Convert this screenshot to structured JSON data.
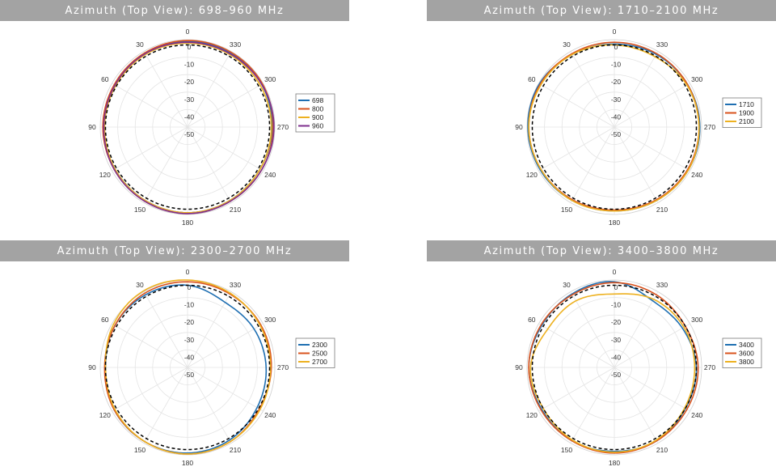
{
  "colors": {
    "banner": "#a3a3a3",
    "reference": "#000000"
  },
  "chart_data": [
    {
      "type": "polar-line",
      "title": "Azimuth (Top View): 698–960 MHz",
      "angle_labels": [
        "0",
        "330",
        "300",
        "270",
        "240",
        "210",
        "180",
        "150",
        "120",
        "90",
        "60",
        "30"
      ],
      "radial_labels": [
        "0",
        "-10",
        "-20",
        "-30",
        "-40",
        "-50"
      ],
      "rlim": [
        -50,
        0
      ],
      "grid": true,
      "legend_position": "right",
      "angle_direction": "counter-clockwise shown left to right: 30 at upper-left, 330 at upper-right",
      "reference": {
        "style": "dashed",
        "color": "#000000",
        "value": -3
      },
      "series": [
        {
          "name": "698",
          "color": "#1f6fb2",
          "angles": [
            0,
            30,
            60,
            90,
            120,
            150,
            180,
            210,
            240,
            270,
            300,
            330
          ],
          "values": [
            -1.0,
            -1.5,
            -2.0,
            -2.0,
            -2.0,
            -1.5,
            -1.0,
            -1.5,
            -2.0,
            -1.5,
            -1.0,
            -1.0
          ]
        },
        {
          "name": "800",
          "color": "#d9531e",
          "angles": [
            0,
            30,
            60,
            90,
            120,
            150,
            180,
            210,
            240,
            270,
            300,
            330
          ],
          "values": [
            -0.5,
            -1.0,
            -1.5,
            -1.5,
            -1.5,
            -1.0,
            -0.5,
            -1.0,
            -1.0,
            -1.0,
            -0.5,
            -0.5
          ]
        },
        {
          "name": "900",
          "color": "#edb120",
          "angles": [
            0,
            30,
            60,
            90,
            120,
            150,
            180,
            210,
            240,
            270,
            300,
            330
          ],
          "values": [
            -2.0,
            -2.0,
            -2.5,
            -2.5,
            -2.0,
            -1.5,
            -1.0,
            -1.5,
            -2.0,
            -2.0,
            -2.0,
            -2.0
          ]
        },
        {
          "name": "960",
          "color": "#7e2f8e",
          "angles": [
            0,
            30,
            60,
            90,
            120,
            150,
            180,
            210,
            240,
            270,
            300,
            330
          ],
          "values": [
            -1.5,
            -1.5,
            -2.0,
            -2.0,
            -1.5,
            -1.0,
            -0.5,
            -1.0,
            -1.0,
            -0.5,
            -1.0,
            -1.5
          ]
        }
      ]
    },
    {
      "type": "polar-line",
      "title": "Azimuth (Top View): 1710–2100 MHz",
      "angle_labels": [
        "0",
        "330",
        "300",
        "270",
        "240",
        "210",
        "180",
        "150",
        "120",
        "90",
        "60",
        "30"
      ],
      "radial_labels": [
        "0",
        "-10",
        "-20",
        "-30",
        "-40",
        "-50"
      ],
      "rlim": [
        -50,
        0
      ],
      "grid": true,
      "legend_position": "right",
      "reference": {
        "style": "dashed",
        "color": "#000000",
        "value": -3
      },
      "series": [
        {
          "name": "1710",
          "color": "#1f6fb2",
          "angles": [
            0,
            30,
            60,
            90,
            120,
            150,
            180,
            210,
            240,
            270,
            300,
            330
          ],
          "values": [
            -2.5,
            -2.0,
            -0.5,
            -0.5,
            -1.0,
            -1.5,
            -2.0,
            -1.5,
            -1.0,
            -1.0,
            -1.5,
            -2.0
          ]
        },
        {
          "name": "1900",
          "color": "#d9531e",
          "angles": [
            0,
            30,
            60,
            90,
            120,
            150,
            180,
            210,
            240,
            270,
            300,
            330
          ],
          "values": [
            -1.5,
            -1.5,
            -1.0,
            -1.0,
            -1.5,
            -2.0,
            -2.5,
            -2.0,
            -1.5,
            -1.5,
            -1.5,
            -1.5
          ]
        },
        {
          "name": "2100",
          "color": "#edb120",
          "angles": [
            0,
            30,
            60,
            90,
            120,
            150,
            180,
            210,
            240,
            270,
            300,
            330
          ],
          "values": [
            -3.0,
            -2.0,
            -1.5,
            -1.0,
            -1.5,
            -1.5,
            -2.0,
            -1.5,
            -1.0,
            -1.5,
            -2.0,
            -3.5
          ]
        }
      ]
    },
    {
      "type": "polar-line",
      "title": "Azimuth (Top View): 2300–2700 MHz",
      "angle_labels": [
        "0",
        "330",
        "300",
        "270",
        "240",
        "210",
        "180",
        "150",
        "120",
        "90",
        "60",
        "30"
      ],
      "radial_labels": [
        "0",
        "-10",
        "-20",
        "-30",
        "-40",
        "-50"
      ],
      "rlim": [
        -50,
        0
      ],
      "grid": true,
      "legend_position": "right",
      "reference": {
        "style": "dashed",
        "color": "#000000",
        "value": -3
      },
      "series": [
        {
          "name": "2300",
          "color": "#1f6fb2",
          "angles": [
            0,
            30,
            60,
            90,
            120,
            150,
            180,
            210,
            240,
            270,
            300,
            330
          ],
          "values": [
            -3.0,
            -2.0,
            -2.0,
            -3.0,
            -1.5,
            -1.0,
            -1.0,
            -2.0,
            -4.0,
            -5.0,
            -6.0,
            -7.0
          ]
        },
        {
          "name": "2500",
          "color": "#d9531e",
          "angles": [
            0,
            30,
            60,
            90,
            120,
            150,
            180,
            210,
            240,
            270,
            300,
            330
          ],
          "values": [
            -1.0,
            -1.0,
            -2.0,
            -2.5,
            -1.5,
            -1.0,
            -0.5,
            -1.0,
            -2.5,
            -2.0,
            -1.5,
            -1.5
          ]
        },
        {
          "name": "2700",
          "color": "#edb120",
          "angles": [
            0,
            30,
            60,
            90,
            120,
            150,
            180,
            210,
            240,
            270,
            300,
            330
          ],
          "values": [
            0,
            0.5,
            -1.0,
            -3.0,
            -2.0,
            -1.0,
            -0.5,
            -1.0,
            -2.0,
            -2.5,
            -2.0,
            -1.0
          ]
        }
      ]
    },
    {
      "type": "polar-line",
      "title": "Azimuth (Top View): 3400–3800 MHz",
      "angle_labels": [
        "0",
        "330",
        "300",
        "270",
        "240",
        "210",
        "180",
        "150",
        "120",
        "90",
        "60",
        "30"
      ],
      "radial_labels": [
        "0",
        "-10",
        "-20",
        "-30",
        "-40",
        "-50"
      ],
      "rlim": [
        -50,
        0
      ],
      "grid": true,
      "legend_position": "right",
      "reference": {
        "style": "dashed",
        "color": "#000000",
        "value": -3
      },
      "series": [
        {
          "name": "3400",
          "color": "#1f6fb2",
          "angles": [
            0,
            30,
            60,
            90,
            120,
            150,
            180,
            210,
            240,
            270,
            300,
            330
          ],
          "values": [
            -1.0,
            -1.5,
            -2.0,
            -1.0,
            -2.0,
            -1.5,
            -2.0,
            -1.5,
            -3.0,
            -3.0,
            -5.0,
            -6.0
          ]
        },
        {
          "name": "3600",
          "color": "#d9531e",
          "angles": [
            0,
            30,
            60,
            90,
            120,
            150,
            180,
            210,
            240,
            270,
            300,
            330
          ],
          "values": [
            -1.5,
            -2.0,
            -1.5,
            -1.0,
            -1.5,
            -1.5,
            -1.0,
            -1.5,
            -2.0,
            -2.0,
            -3.0,
            -2.0
          ]
        },
        {
          "name": "3800",
          "color": "#edb120",
          "angles": [
            0,
            30,
            60,
            90,
            120,
            150,
            180,
            210,
            240,
            270,
            300,
            330
          ],
          "values": [
            -8.0,
            -6.0,
            -6.0,
            -2.0,
            -3.0,
            -2.0,
            -1.5,
            -2.0,
            -3.5,
            -4.0,
            -4.0,
            -5.0
          ]
        }
      ]
    }
  ]
}
